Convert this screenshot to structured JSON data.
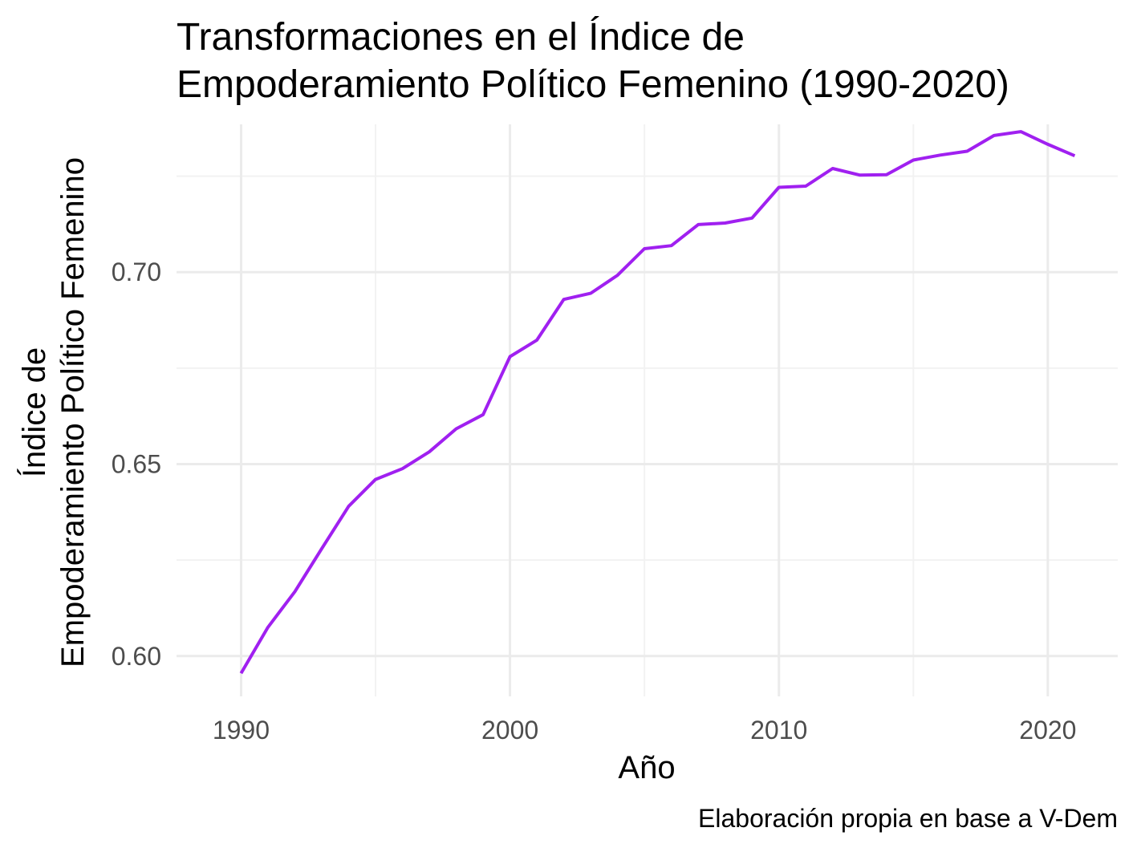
{
  "chart_data": {
    "type": "line",
    "title_lines": [
      "Transformaciones en el Índice de",
      "Empoderamiento Político Femenino (1990-2020)"
    ],
    "xlabel": "Año",
    "ylabel_lines": [
      "Índice de",
      "Empoderamiento Político Femenino"
    ],
    "caption": "Elaboración propia en base a V-Dem",
    "xlim": [
      1987.6,
      2022.6
    ],
    "ylim": [
      0.5895,
      0.7385
    ],
    "x_ticks": [
      1990,
      2000,
      2010,
      2020
    ],
    "x_minor_ticks": [
      1995,
      2005,
      2015
    ],
    "y_ticks": [
      0.6,
      0.65,
      0.7
    ],
    "y_tick_labels": [
      "0.60",
      "0.65",
      "0.70"
    ],
    "y_minor_ticks": [
      0.625,
      0.675,
      0.725
    ],
    "grid": true,
    "line_color": "#a020f0",
    "series": [
      {
        "x": [
          1990,
          1991,
          1992,
          1993,
          1994,
          1995,
          1996,
          1997,
          1998,
          1999,
          2000,
          2001,
          2002,
          2003,
          2004,
          2005,
          2006,
          2007,
          2008,
          2009,
          2010,
          2011,
          2012,
          2013,
          2014,
          2015,
          2016,
          2017,
          2018,
          2019,
          2020,
          2021
        ],
        "values": [
          0.5955,
          0.6075,
          0.6168,
          0.628,
          0.639,
          0.646,
          0.6488,
          0.6532,
          0.6592,
          0.6629,
          0.678,
          0.6823,
          0.6929,
          0.6945,
          0.6992,
          0.7061,
          0.7069,
          0.7124,
          0.7128,
          0.7141,
          0.7221,
          0.7224,
          0.727,
          0.7253,
          0.7254,
          0.7292,
          0.7305,
          0.7315,
          0.7356,
          0.7366,
          0.7333,
          0.7303
        ]
      }
    ]
  }
}
